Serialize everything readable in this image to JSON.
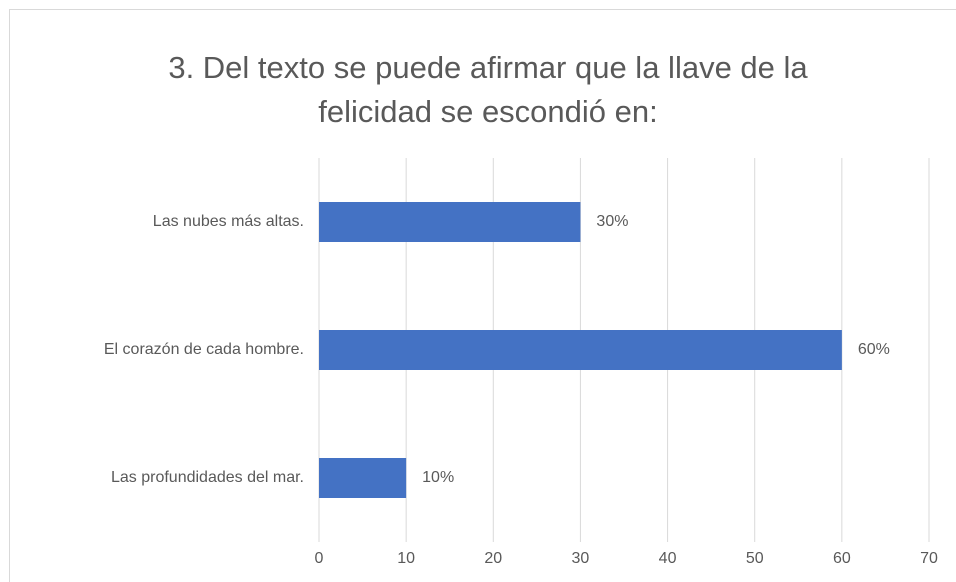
{
  "chart_data": {
    "type": "barh",
    "title": [
      "3. Del texto se puede afirmar que la llave de la",
      "felicidad se escondió en:"
    ],
    "categories": [
      "Las nubes más altas.",
      "El corazón de cada hombre.",
      "Las profundidades del mar."
    ],
    "values": [
      30,
      60,
      10
    ],
    "value_labels": [
      "30%",
      "60%",
      "10%"
    ],
    "color": "#4472c4",
    "xlim": [
      0,
      70
    ],
    "xticks": [
      0,
      10,
      20,
      30,
      40,
      50,
      60,
      70
    ],
    "grid": true
  }
}
